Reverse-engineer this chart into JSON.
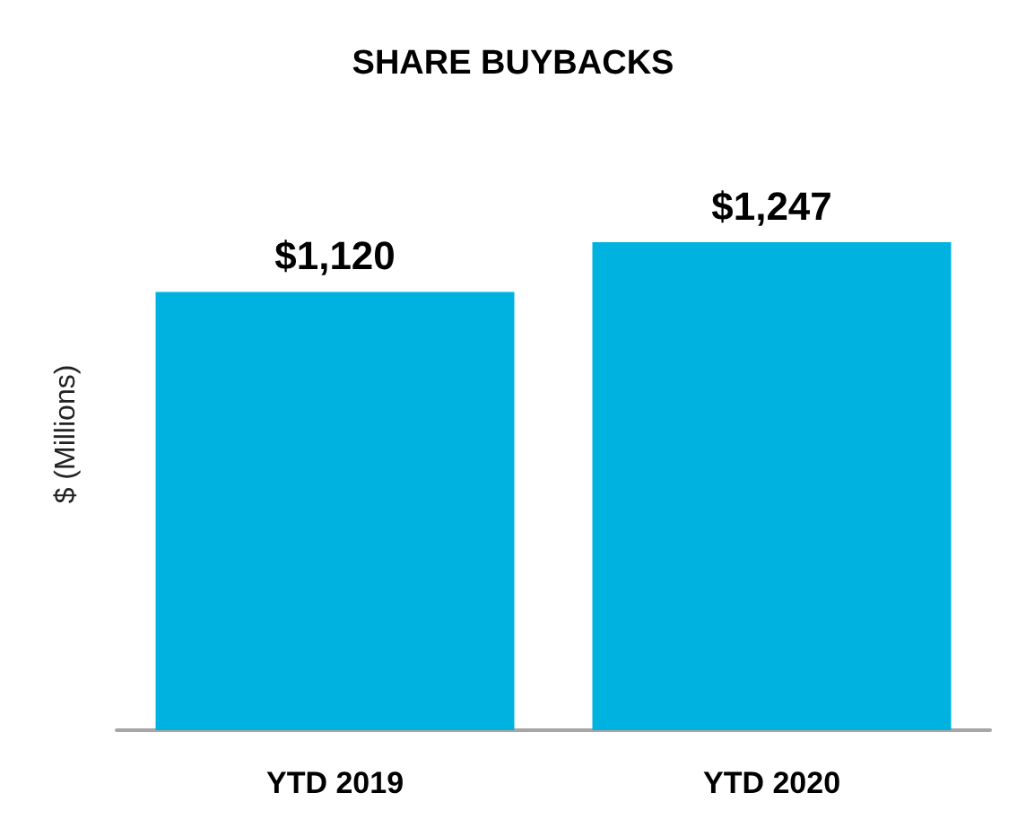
{
  "chart_data": {
    "type": "bar",
    "title": "SHARE BUYBACKS",
    "ylabel": "$ (Millions)",
    "categories": [
      "YTD 2019",
      "YTD 2020"
    ],
    "values": [
      1120,
      1247
    ],
    "value_labels": [
      "$1,120",
      "$1,247"
    ],
    "color": "#00b2e0"
  }
}
